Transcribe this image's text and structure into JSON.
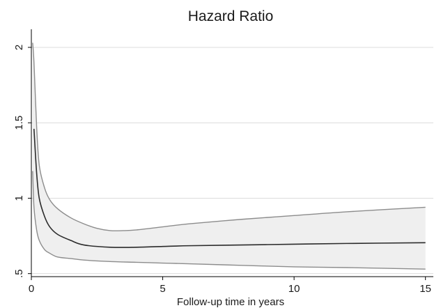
{
  "chart_data": {
    "type": "line",
    "title": "Hazard Ratio",
    "xlabel": "Follow-up time in years",
    "ylabel": "",
    "xlim": [
      0,
      15.3
    ],
    "ylim": [
      0.48,
      2.12
    ],
    "x_ticks": [
      0,
      5,
      10,
      15
    ],
    "x_tick_labels": [
      "0",
      "5",
      "10",
      "15"
    ],
    "y_ticks": [
      0.5,
      1,
      1.5,
      2
    ],
    "y_tick_labels": [
      ".5",
      "1",
      "1.5",
      "2"
    ],
    "grid": true,
    "series": [
      {
        "role": "estimate",
        "color": "#2b2b2b",
        "x": [
          0.1,
          0.2,
          0.3,
          0.5,
          0.7,
          1.0,
          1.5,
          2.0,
          3.0,
          4.0,
          5.0,
          6.0,
          8.0,
          10.0,
          12.0,
          15.0
        ],
        "y": [
          1.46,
          1.17,
          1.0,
          0.88,
          0.81,
          0.76,
          0.72,
          0.69,
          0.675,
          0.675,
          0.68,
          0.685,
          0.69,
          0.695,
          0.7,
          0.705
        ]
      },
      {
        "role": "upper-ci",
        "color": "#8c8c8c",
        "x": [
          0.05,
          0.1,
          0.2,
          0.3,
          0.5,
          0.7,
          1.0,
          1.5,
          2.0,
          2.5,
          3.0,
          3.5,
          4.0,
          5.0,
          6.0,
          8.0,
          10.0,
          12.0,
          15.0
        ],
        "y": [
          2.03,
          1.9,
          1.48,
          1.22,
          1.07,
          0.99,
          0.93,
          0.87,
          0.83,
          0.8,
          0.785,
          0.785,
          0.79,
          0.81,
          0.83,
          0.86,
          0.885,
          0.91,
          0.94
        ]
      },
      {
        "role": "lower-ci",
        "color": "#8c8c8c",
        "x": [
          0.05,
          0.1,
          0.2,
          0.3,
          0.5,
          0.7,
          1.0,
          1.5,
          2.0,
          3.0,
          4.0,
          5.0,
          6.0,
          8.0,
          10.0,
          12.0,
          15.0
        ],
        "y": [
          1.18,
          0.94,
          0.79,
          0.72,
          0.66,
          0.635,
          0.61,
          0.6,
          0.59,
          0.58,
          0.575,
          0.57,
          0.565,
          0.555,
          0.545,
          0.54,
          0.53
        ]
      }
    ],
    "band_fill": "#efefef",
    "axis_color": "#000000",
    "grid_color": "#dcdcdc"
  }
}
